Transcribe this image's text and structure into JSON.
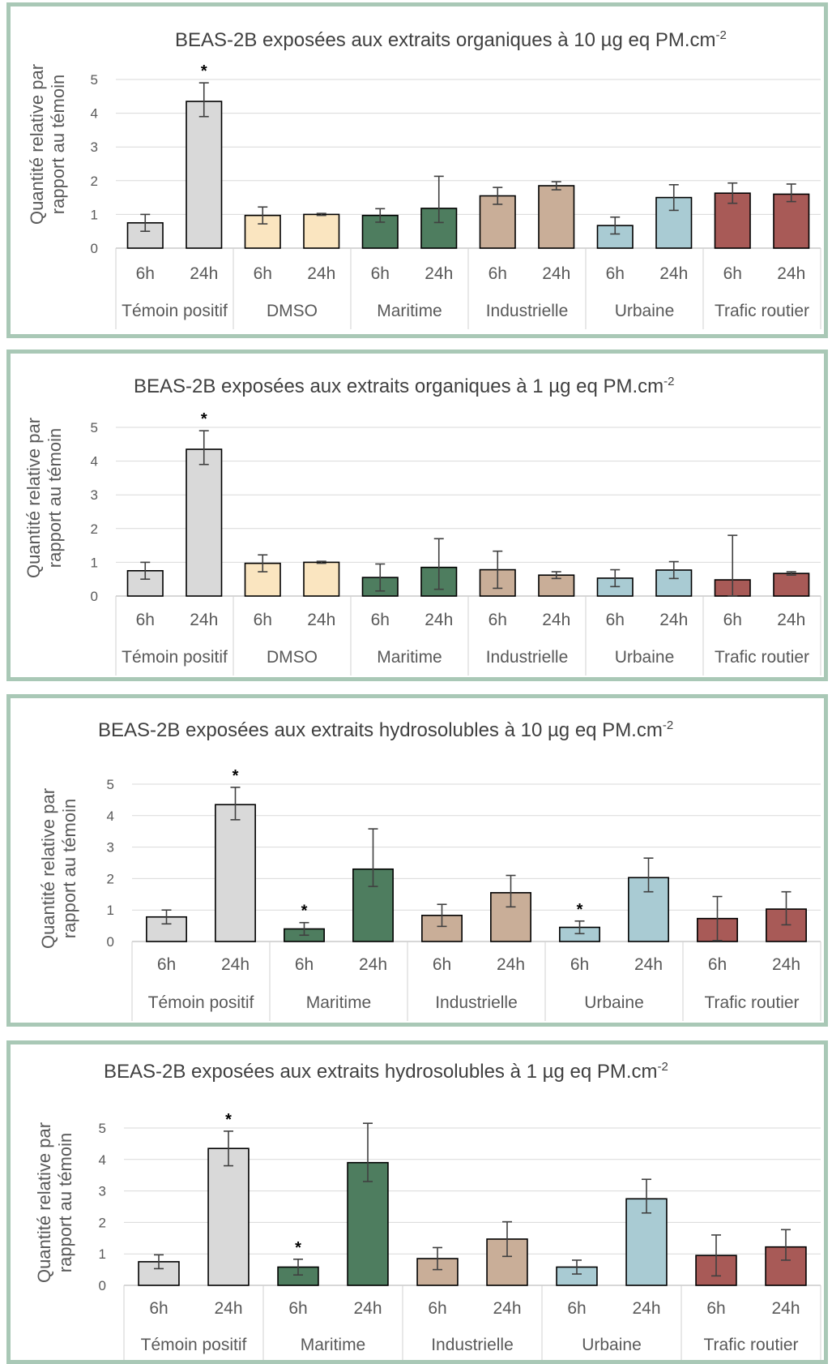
{
  "colors": {
    "Témoin positif": "#d9d9d9",
    "DMSO": "#fae5c0",
    "Maritime": "#4e7d5f",
    "Industrielle": "#c9ae98",
    "Urbaine": "#a9cbd3",
    "Trafic routier": "#a85a57",
    "panel_border": "#a9c8b6"
  },
  "chart_data": [
    {
      "type": "bar",
      "title": "BEAS-2B exposées aux extraits organiques à 10 µg eq PM.cm",
      "title_sup": "-2",
      "ylabel_line1": "Quantité relative par",
      "ylabel_line2": "rapport au témoin",
      "ylim": [
        0,
        5
      ],
      "yticks": [
        "0",
        "1",
        "2",
        "3",
        "4",
        "5"
      ],
      "grid": true,
      "groups": [
        "Témoin positif",
        "DMSO",
        "Maritime",
        "Industrielle",
        "Urbaine",
        "Trafic routier"
      ],
      "subcategories": [
        "6h",
        "24h"
      ],
      "values": [
        [
          0.75,
          4.35
        ],
        [
          0.97,
          1.0
        ],
        [
          0.97,
          1.18
        ],
        [
          1.55,
          1.85
        ],
        [
          0.67,
          1.5
        ],
        [
          1.63,
          1.6
        ]
      ],
      "error_low": [
        [
          0.25,
          0.45
        ],
        [
          0.25,
          0.03
        ],
        [
          0.2,
          0.42
        ],
        [
          0.25,
          0.12
        ],
        [
          0.25,
          0.38
        ],
        [
          0.3,
          0.22
        ]
      ],
      "error_high": [
        [
          0.25,
          0.55
        ],
        [
          0.25,
          0.03
        ],
        [
          0.2,
          0.95
        ],
        [
          0.25,
          0.12
        ],
        [
          0.25,
          0.38
        ],
        [
          0.3,
          0.3
        ]
      ],
      "annotations": [
        {
          "text": "*",
          "group": "Témoin positif",
          "sub": "24h"
        }
      ]
    },
    {
      "type": "bar",
      "title": "BEAS-2B exposées aux extraits organiques à 1 µg eq PM.cm",
      "title_sup": "-2",
      "ylabel_line1": "Quantité relative par",
      "ylabel_line2": "rapport au témoin",
      "ylim": [
        0,
        5
      ],
      "yticks": [
        "0",
        "1",
        "2",
        "3",
        "4",
        "5"
      ],
      "grid": true,
      "groups": [
        "Témoin positif",
        "DMSO",
        "Maritime",
        "Industrielle",
        "Urbaine",
        "Trafic routier"
      ],
      "subcategories": [
        "6h",
        "24h"
      ],
      "values": [
        [
          0.75,
          4.35
        ],
        [
          0.97,
          1.0
        ],
        [
          0.55,
          0.85
        ],
        [
          0.78,
          0.62
        ],
        [
          0.53,
          0.77
        ],
        [
          0.48,
          0.67
        ]
      ],
      "error_low": [
        [
          0.25,
          0.45
        ],
        [
          0.25,
          0.03
        ],
        [
          0.4,
          0.65
        ],
        [
          0.55,
          0.1
        ],
        [
          0.25,
          0.25
        ],
        [
          0.48,
          0.05
        ]
      ],
      "error_high": [
        [
          0.25,
          0.55
        ],
        [
          0.25,
          0.03
        ],
        [
          0.4,
          0.85
        ],
        [
          0.55,
          0.1
        ],
        [
          0.25,
          0.25
        ],
        [
          1.32,
          0.05
        ]
      ],
      "annotations": [
        {
          "text": "*",
          "group": "Témoin positif",
          "sub": "24h"
        }
      ]
    },
    {
      "type": "bar",
      "title": "BEAS-2B exposées aux extraits hydrosolubles à 10 µg eq PM.cm",
      "title_sup": "-2",
      "ylabel_line1": "Quantité relative par",
      "ylabel_line2": "rapport au témoin",
      "ylim": [
        0,
        5
      ],
      "yticks": [
        "0",
        "1",
        "2",
        "3",
        "4",
        "5"
      ],
      "grid": true,
      "groups": [
        "Témoin positif",
        "Maritime",
        "Industrielle",
        "Urbaine",
        "Trafic routier"
      ],
      "subcategories": [
        "6h",
        "24h"
      ],
      "values": [
        [
          0.78,
          4.35
        ],
        [
          0.4,
          2.3
        ],
        [
          0.83,
          1.55
        ],
        [
          0.45,
          2.03
        ],
        [
          0.73,
          1.03
        ]
      ],
      "error_low": [
        [
          0.22,
          0.48
        ],
        [
          0.2,
          0.55
        ],
        [
          0.35,
          0.45
        ],
        [
          0.2,
          0.45
        ],
        [
          0.7,
          0.5
        ]
      ],
      "error_high": [
        [
          0.22,
          0.55
        ],
        [
          0.2,
          1.28
        ],
        [
          0.35,
          0.55
        ],
        [
          0.2,
          0.62
        ],
        [
          0.7,
          0.55
        ]
      ],
      "annotations": [
        {
          "text": "*",
          "group": "Témoin positif",
          "sub": "24h"
        },
        {
          "text": "*",
          "group": "Maritime",
          "sub": "6h"
        },
        {
          "text": "*",
          "group": "Urbaine",
          "sub": "6h"
        }
      ]
    },
    {
      "type": "bar",
      "title": "BEAS-2B exposées aux extraits hydrosolubles à 1 µg eq PM.cm",
      "title_sup": "-2",
      "ylabel_line1": "Quantité relative par",
      "ylabel_line2": "rapport au témoin",
      "ylim": [
        0,
        5
      ],
      "yticks": [
        "0",
        "1",
        "2",
        "3",
        "4",
        "5"
      ],
      "grid": true,
      "groups": [
        "Témoin positif",
        "Maritime",
        "Industrielle",
        "Urbaine",
        "Trafic routier"
      ],
      "subcategories": [
        "6h",
        "24h"
      ],
      "values": [
        [
          0.75,
          4.35
        ],
        [
          0.58,
          3.9
        ],
        [
          0.85,
          1.47
        ],
        [
          0.58,
          2.75
        ],
        [
          0.95,
          1.22
        ]
      ],
      "error_low": [
        [
          0.22,
          0.55
        ],
        [
          0.25,
          0.6
        ],
        [
          0.35,
          0.55
        ],
        [
          0.22,
          0.45
        ],
        [
          0.65,
          0.42
        ]
      ],
      "error_high": [
        [
          0.22,
          0.55
        ],
        [
          0.25,
          1.25
        ],
        [
          0.35,
          0.55
        ],
        [
          0.22,
          0.62
        ],
        [
          0.65,
          0.55
        ]
      ],
      "annotations": [
        {
          "text": "*",
          "group": "Témoin positif",
          "sub": "24h"
        },
        {
          "text": "*",
          "group": "Maritime",
          "sub": "6h"
        }
      ]
    }
  ]
}
